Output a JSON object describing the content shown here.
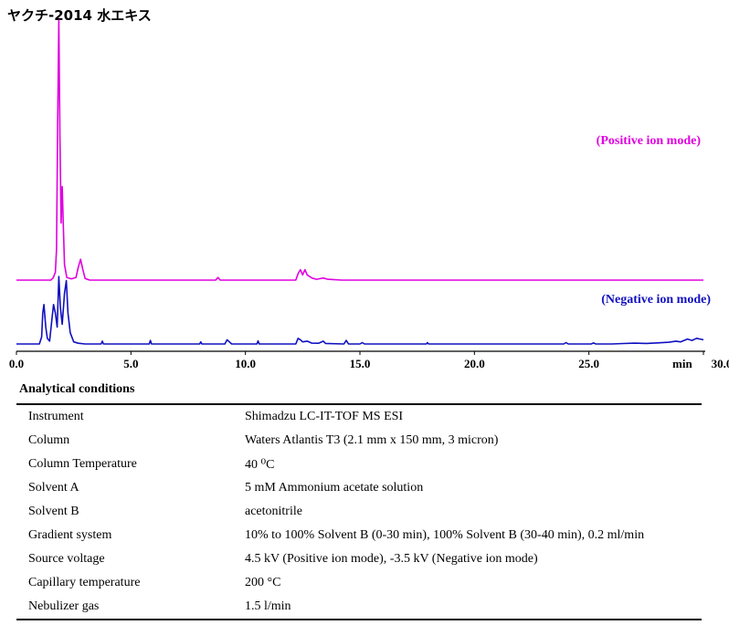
{
  "chart_data": {
    "type": "line",
    "title": "ヤクチ-2014 水エキス",
    "xlabel": "min",
    "xlim": [
      0,
      30
    ],
    "x_ticks": [
      "0.0",
      "5.0",
      "10.0",
      "15.0",
      "20.0",
      "25.0",
      "30.0"
    ],
    "x_tick_values": [
      0,
      5,
      10,
      15,
      20,
      25,
      30
    ],
    "ylim": [
      0,
      100
    ],
    "grid": false,
    "series": [
      {
        "name": "(Positive ion mode)",
        "color": "#e000e0",
        "baseline": 0,
        "points": [
          [
            0,
            0
          ],
          [
            1.5,
            0
          ],
          [
            1.6,
            0.8
          ],
          [
            1.7,
            3
          ],
          [
            1.75,
            12
          ],
          [
            1.8,
            60
          ],
          [
            1.85,
            100
          ],
          [
            1.9,
            55
          ],
          [
            1.95,
            22
          ],
          [
            2.0,
            36
          ],
          [
            2.05,
            20
          ],
          [
            2.1,
            6
          ],
          [
            2.2,
            1
          ],
          [
            2.4,
            0.5
          ],
          [
            2.6,
            1
          ],
          [
            2.7,
            5
          ],
          [
            2.8,
            8
          ],
          [
            2.9,
            4
          ],
          [
            3.0,
            0.6
          ],
          [
            3.2,
            0
          ],
          [
            8.7,
            0
          ],
          [
            8.8,
            1
          ],
          [
            8.9,
            0
          ],
          [
            12.2,
            0
          ],
          [
            12.3,
            2.5
          ],
          [
            12.4,
            4
          ],
          [
            12.5,
            2
          ],
          [
            12.6,
            4
          ],
          [
            12.7,
            2
          ],
          [
            12.9,
            0.8
          ],
          [
            13.1,
            0.3
          ],
          [
            13.4,
            0.8
          ],
          [
            13.6,
            0.3
          ],
          [
            14.2,
            0
          ],
          [
            30,
            0
          ]
        ]
      },
      {
        "name": "(Negative ion mode)",
        "color": "#1010c0",
        "baseline": 0,
        "points": [
          [
            0,
            0
          ],
          [
            1.0,
            0
          ],
          [
            1.1,
            5
          ],
          [
            1.15,
            22
          ],
          [
            1.2,
            28
          ],
          [
            1.28,
            12
          ],
          [
            1.35,
            4
          ],
          [
            1.45,
            2
          ],
          [
            1.55,
            18
          ],
          [
            1.62,
            28
          ],
          [
            1.7,
            22
          ],
          [
            1.78,
            12
          ],
          [
            1.85,
            48
          ],
          [
            1.92,
            26
          ],
          [
            2.0,
            14
          ],
          [
            2.1,
            36
          ],
          [
            2.18,
            45
          ],
          [
            2.25,
            22
          ],
          [
            2.35,
            8
          ],
          [
            2.5,
            1.5
          ],
          [
            2.7,
            0.5
          ],
          [
            3.0,
            0
          ],
          [
            3.7,
            0
          ],
          [
            3.75,
            2
          ],
          [
            3.8,
            0
          ],
          [
            5.8,
            0
          ],
          [
            5.85,
            2.5
          ],
          [
            5.9,
            0
          ],
          [
            8.0,
            0
          ],
          [
            8.05,
            1.5
          ],
          [
            8.1,
            0
          ],
          [
            9.1,
            0
          ],
          [
            9.2,
            3
          ],
          [
            9.3,
            1.5
          ],
          [
            9.4,
            0
          ],
          [
            10.5,
            0
          ],
          [
            10.55,
            2.2
          ],
          [
            10.6,
            0
          ],
          [
            12.2,
            0
          ],
          [
            12.3,
            4
          ],
          [
            12.4,
            3
          ],
          [
            12.5,
            1.5
          ],
          [
            12.7,
            2
          ],
          [
            12.9,
            0.6
          ],
          [
            13.2,
            0.5
          ],
          [
            13.4,
            2
          ],
          [
            13.5,
            0.4
          ],
          [
            14.3,
            0
          ],
          [
            14.4,
            2.5
          ],
          [
            14.5,
            0
          ],
          [
            15.0,
            0
          ],
          [
            15.1,
            1
          ],
          [
            15.2,
            0
          ],
          [
            17.9,
            0
          ],
          [
            17.95,
            1
          ],
          [
            18.0,
            0
          ],
          [
            23.9,
            0
          ],
          [
            24.0,
            1
          ],
          [
            24.1,
            0
          ],
          [
            25.1,
            0
          ],
          [
            25.2,
            0.8
          ],
          [
            25.3,
            0
          ],
          [
            26.0,
            0
          ],
          [
            26.5,
            0.3
          ],
          [
            27.0,
            0.6
          ],
          [
            27.5,
            0.4
          ],
          [
            28.0,
            0.8
          ],
          [
            28.5,
            1.2
          ],
          [
            28.8,
            2
          ],
          [
            29.0,
            1.5
          ],
          [
            29.3,
            3.5
          ],
          [
            29.5,
            2.5
          ],
          [
            29.7,
            4
          ],
          [
            30,
            3
          ]
        ]
      }
    ]
  },
  "conditions": {
    "heading": "Analytical conditions",
    "rows": [
      {
        "key": "Instrument",
        "value": "Shimadzu LC-IT-TOF MS ESI"
      },
      {
        "key": "Column",
        "value": "Waters Atlantis T3 (2.1 mm x 150 mm, 3 micron)"
      },
      {
        "key": "Column Temperature",
        "value": "40 ⁰C"
      },
      {
        "key": "Solvent A",
        "value": "5 mM Ammonium acetate solution"
      },
      {
        "key": "Solvent B",
        "value": "acetonitrile"
      },
      {
        "key": "Gradient system",
        "value": "10% to 100% Solvent B (0-30 min), 100% Solvent B (30-40 min), 0.2 ml/min"
      },
      {
        "key": "Source voltage",
        "value": "4.5 kV (Positive ion mode), -3.5 kV (Negative ion mode)"
      },
      {
        "key": "Capillary temperature",
        "value": "200 °C"
      },
      {
        "key": "Nebulizer gas",
        "value": "1.5 l/min"
      }
    ]
  }
}
